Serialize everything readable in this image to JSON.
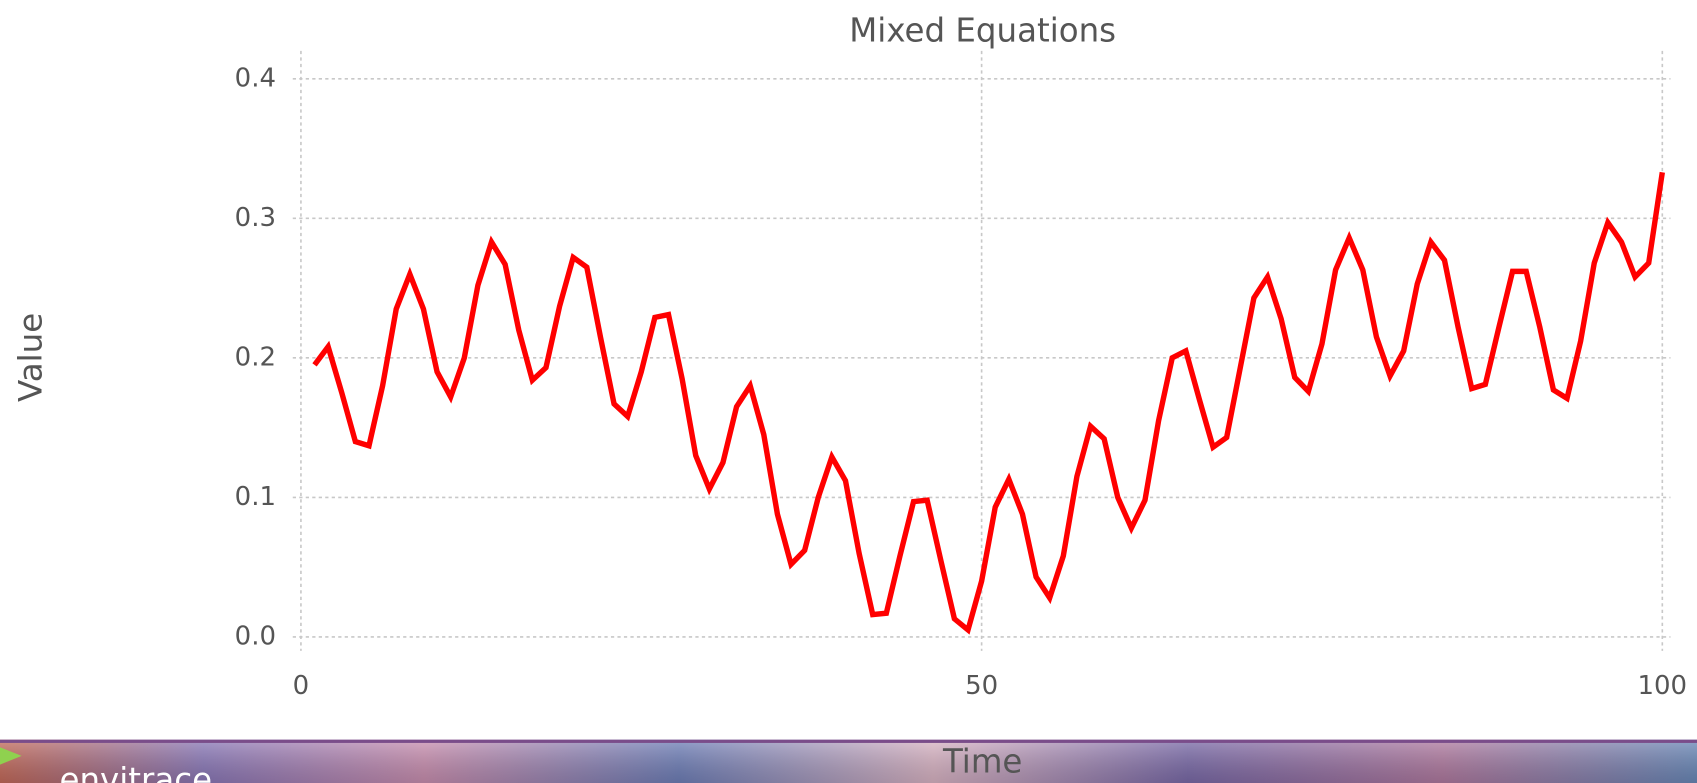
{
  "chart_data": {
    "type": "line",
    "title": "Mixed Equations",
    "xlabel": "Time",
    "ylabel": "Value",
    "x": [
      1,
      2,
      3,
      4,
      5,
      6,
      7,
      8,
      9,
      10,
      11,
      12,
      13,
      14,
      15,
      16,
      17,
      18,
      19,
      20,
      21,
      22,
      23,
      24,
      25,
      26,
      27,
      28,
      29,
      30,
      31,
      32,
      33,
      34,
      35,
      36,
      37,
      38,
      39,
      40,
      41,
      42,
      43,
      44,
      45,
      46,
      47,
      48,
      49,
      50,
      51,
      52,
      53,
      54,
      55,
      56,
      57,
      58,
      59,
      60,
      61,
      62,
      63,
      64,
      65,
      66,
      67,
      68,
      69,
      70,
      71,
      72,
      73,
      74,
      75,
      76,
      77,
      78,
      79,
      80,
      81,
      82,
      83,
      84,
      85,
      86,
      87,
      88,
      89,
      90,
      91,
      92,
      93,
      94,
      95,
      96,
      97,
      98,
      99,
      100
    ],
    "series": [
      {
        "color": "#ff0000",
        "values": [
          0.195,
          0.208,
          0.175,
          0.14,
          0.137,
          0.18,
          0.235,
          0.26,
          0.235,
          0.19,
          0.172,
          0.2,
          0.252,
          0.283,
          0.267,
          0.22,
          0.184,
          0.193,
          0.237,
          0.272,
          0.265,
          0.215,
          0.167,
          0.158,
          0.19,
          0.229,
          0.231,
          0.185,
          0.13,
          0.106,
          0.125,
          0.165,
          0.18,
          0.145,
          0.088,
          0.052,
          0.062,
          0.1,
          0.129,
          0.112,
          0.06,
          0.016,
          0.017,
          0.058,
          0.097,
          0.098,
          0.055,
          0.013,
          0.005,
          0.04,
          0.093,
          0.113,
          0.088,
          0.043,
          0.028,
          0.058,
          0.115,
          0.151,
          0.142,
          0.1,
          0.078,
          0.098,
          0.155,
          0.2,
          0.205,
          0.17,
          0.136,
          0.143,
          0.193,
          0.243,
          0.258,
          0.228,
          0.186,
          0.176,
          0.21,
          0.263,
          0.286,
          0.263,
          0.215,
          0.187,
          0.205,
          0.253,
          0.283,
          0.27,
          0.222,
          0.178,
          0.181,
          0.222,
          0.262,
          0.262,
          0.222,
          0.177,
          0.171,
          0.212,
          0.268,
          0.297,
          0.283,
          0.258,
          0.268,
          0.333
        ]
      }
    ],
    "xlim": [
      -0.6,
      100.6
    ],
    "ylim": [
      -0.01,
      0.42
    ],
    "xticks": [
      0,
      50,
      100
    ],
    "yticks": [
      {
        "value": 0,
        "label": "0.0"
      },
      0.1,
      0.2,
      0.3,
      0.4
    ],
    "grid": true
  },
  "banner": {
    "brand": "envitrace"
  }
}
